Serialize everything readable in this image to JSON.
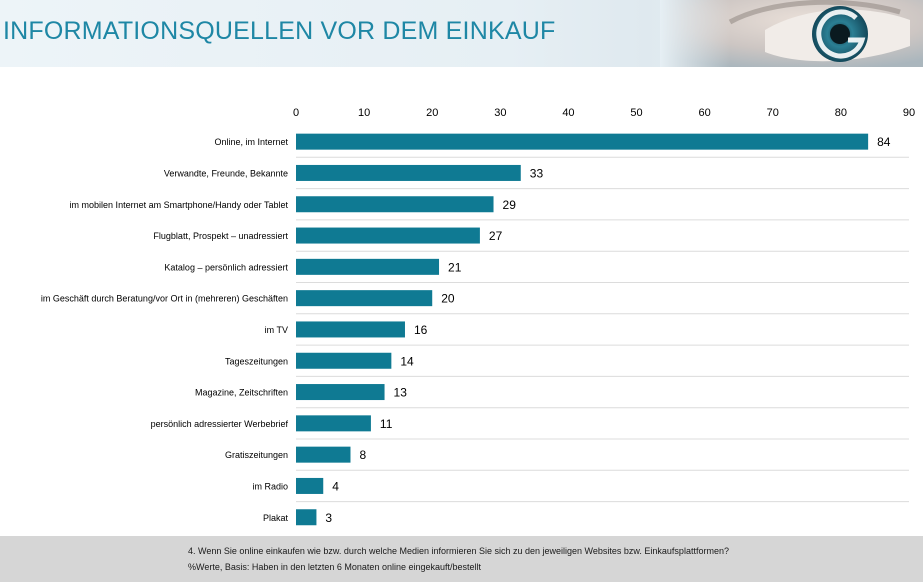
{
  "header": {
    "title": "INFORMATIONSQUELLEN VOR DEM EINKAUF"
  },
  "chart_data": {
    "type": "bar",
    "orientation": "horizontal",
    "title": "INFORMATIONSQUELLEN VOR DEM EINKAUF",
    "xlabel": "",
    "ylabel": "",
    "xlim": [
      0,
      90
    ],
    "x_ticks": [
      0,
      10,
      20,
      30,
      40,
      50,
      60,
      70,
      80,
      90
    ],
    "axis_position": "top",
    "grid": false,
    "bar_color": "#0f7a93",
    "categories": [
      "Online, im Internet",
      "Verwandte, Freunde, Bekannte",
      "im mobilen Internet am Smartphone/Handy oder Tablet",
      "Flugblatt, Prospekt – unadressiert",
      "Katalog – persönlich adressiert",
      "im Geschäft durch Beratung/vor Ort in (mehreren) Geschäften",
      "im TV",
      "Tageszeitungen",
      "Magazine, Zeitschriften",
      "persönlich adressierter Werbebrief",
      "Gratiszeitungen",
      "im Radio",
      "Plakat"
    ],
    "values": [
      84,
      33,
      29,
      27,
      21,
      20,
      16,
      14,
      13,
      11,
      8,
      4,
      3
    ]
  },
  "footer": {
    "question": "4. Wenn Sie online einkaufen wie bzw. durch welche Medien informieren Sie sich zu den jeweiligen Websites bzw. Einkaufsplattformen?",
    "basis": "%Werte, Basis: Haben in den letzten 6 Monaten online eingekauft/bestellt"
  }
}
